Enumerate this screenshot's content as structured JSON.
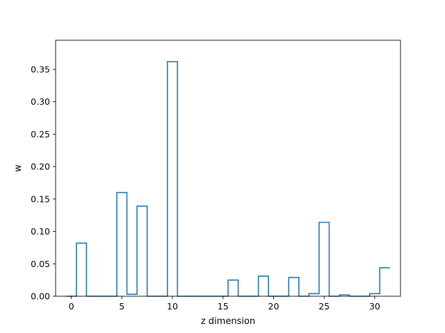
{
  "chart_data": {
    "type": "bar",
    "style": "step-histogram",
    "title": "",
    "xlabel": "z dimension",
    "ylabel": "w",
    "xlim": [
      -1.55,
      32.55
    ],
    "ylim": [
      0,
      0.395
    ],
    "x_ticks": [
      0,
      5,
      10,
      15,
      20,
      25,
      30
    ],
    "x_tick_labels": [
      "0",
      "5",
      "10",
      "15",
      "20",
      "25",
      "30"
    ],
    "y_ticks": [
      0,
      0.05,
      0.1,
      0.15,
      0.2,
      0.25,
      0.3,
      0.35
    ],
    "y_tick_labels": [
      "0.00",
      "0.05",
      "0.10",
      "0.15",
      "0.20",
      "0.25",
      "0.30",
      "0.35"
    ],
    "x": [
      0,
      1,
      2,
      3,
      4,
      5,
      6,
      7,
      8,
      9,
      10,
      11,
      12,
      13,
      14,
      15,
      16,
      17,
      18,
      19,
      20,
      21,
      22,
      23,
      24,
      25,
      26,
      27,
      28,
      29,
      30,
      31
    ],
    "values": [
      0.0,
      0.082,
      0.0,
      0.0,
      0.0,
      0.16,
      0.003,
      0.139,
      0.0,
      0.0,
      0.362,
      0.0,
      0.0,
      0.0,
      0.0,
      0.0,
      0.025,
      0.0,
      0.0,
      0.031,
      0.0,
      0.0,
      0.029,
      0.0,
      0.004,
      0.114,
      0.0,
      0.002,
      0.0,
      0.0,
      0.004,
      0.044
    ],
    "line_color": "#1f77b4",
    "grid": false,
    "legend": "none"
  }
}
